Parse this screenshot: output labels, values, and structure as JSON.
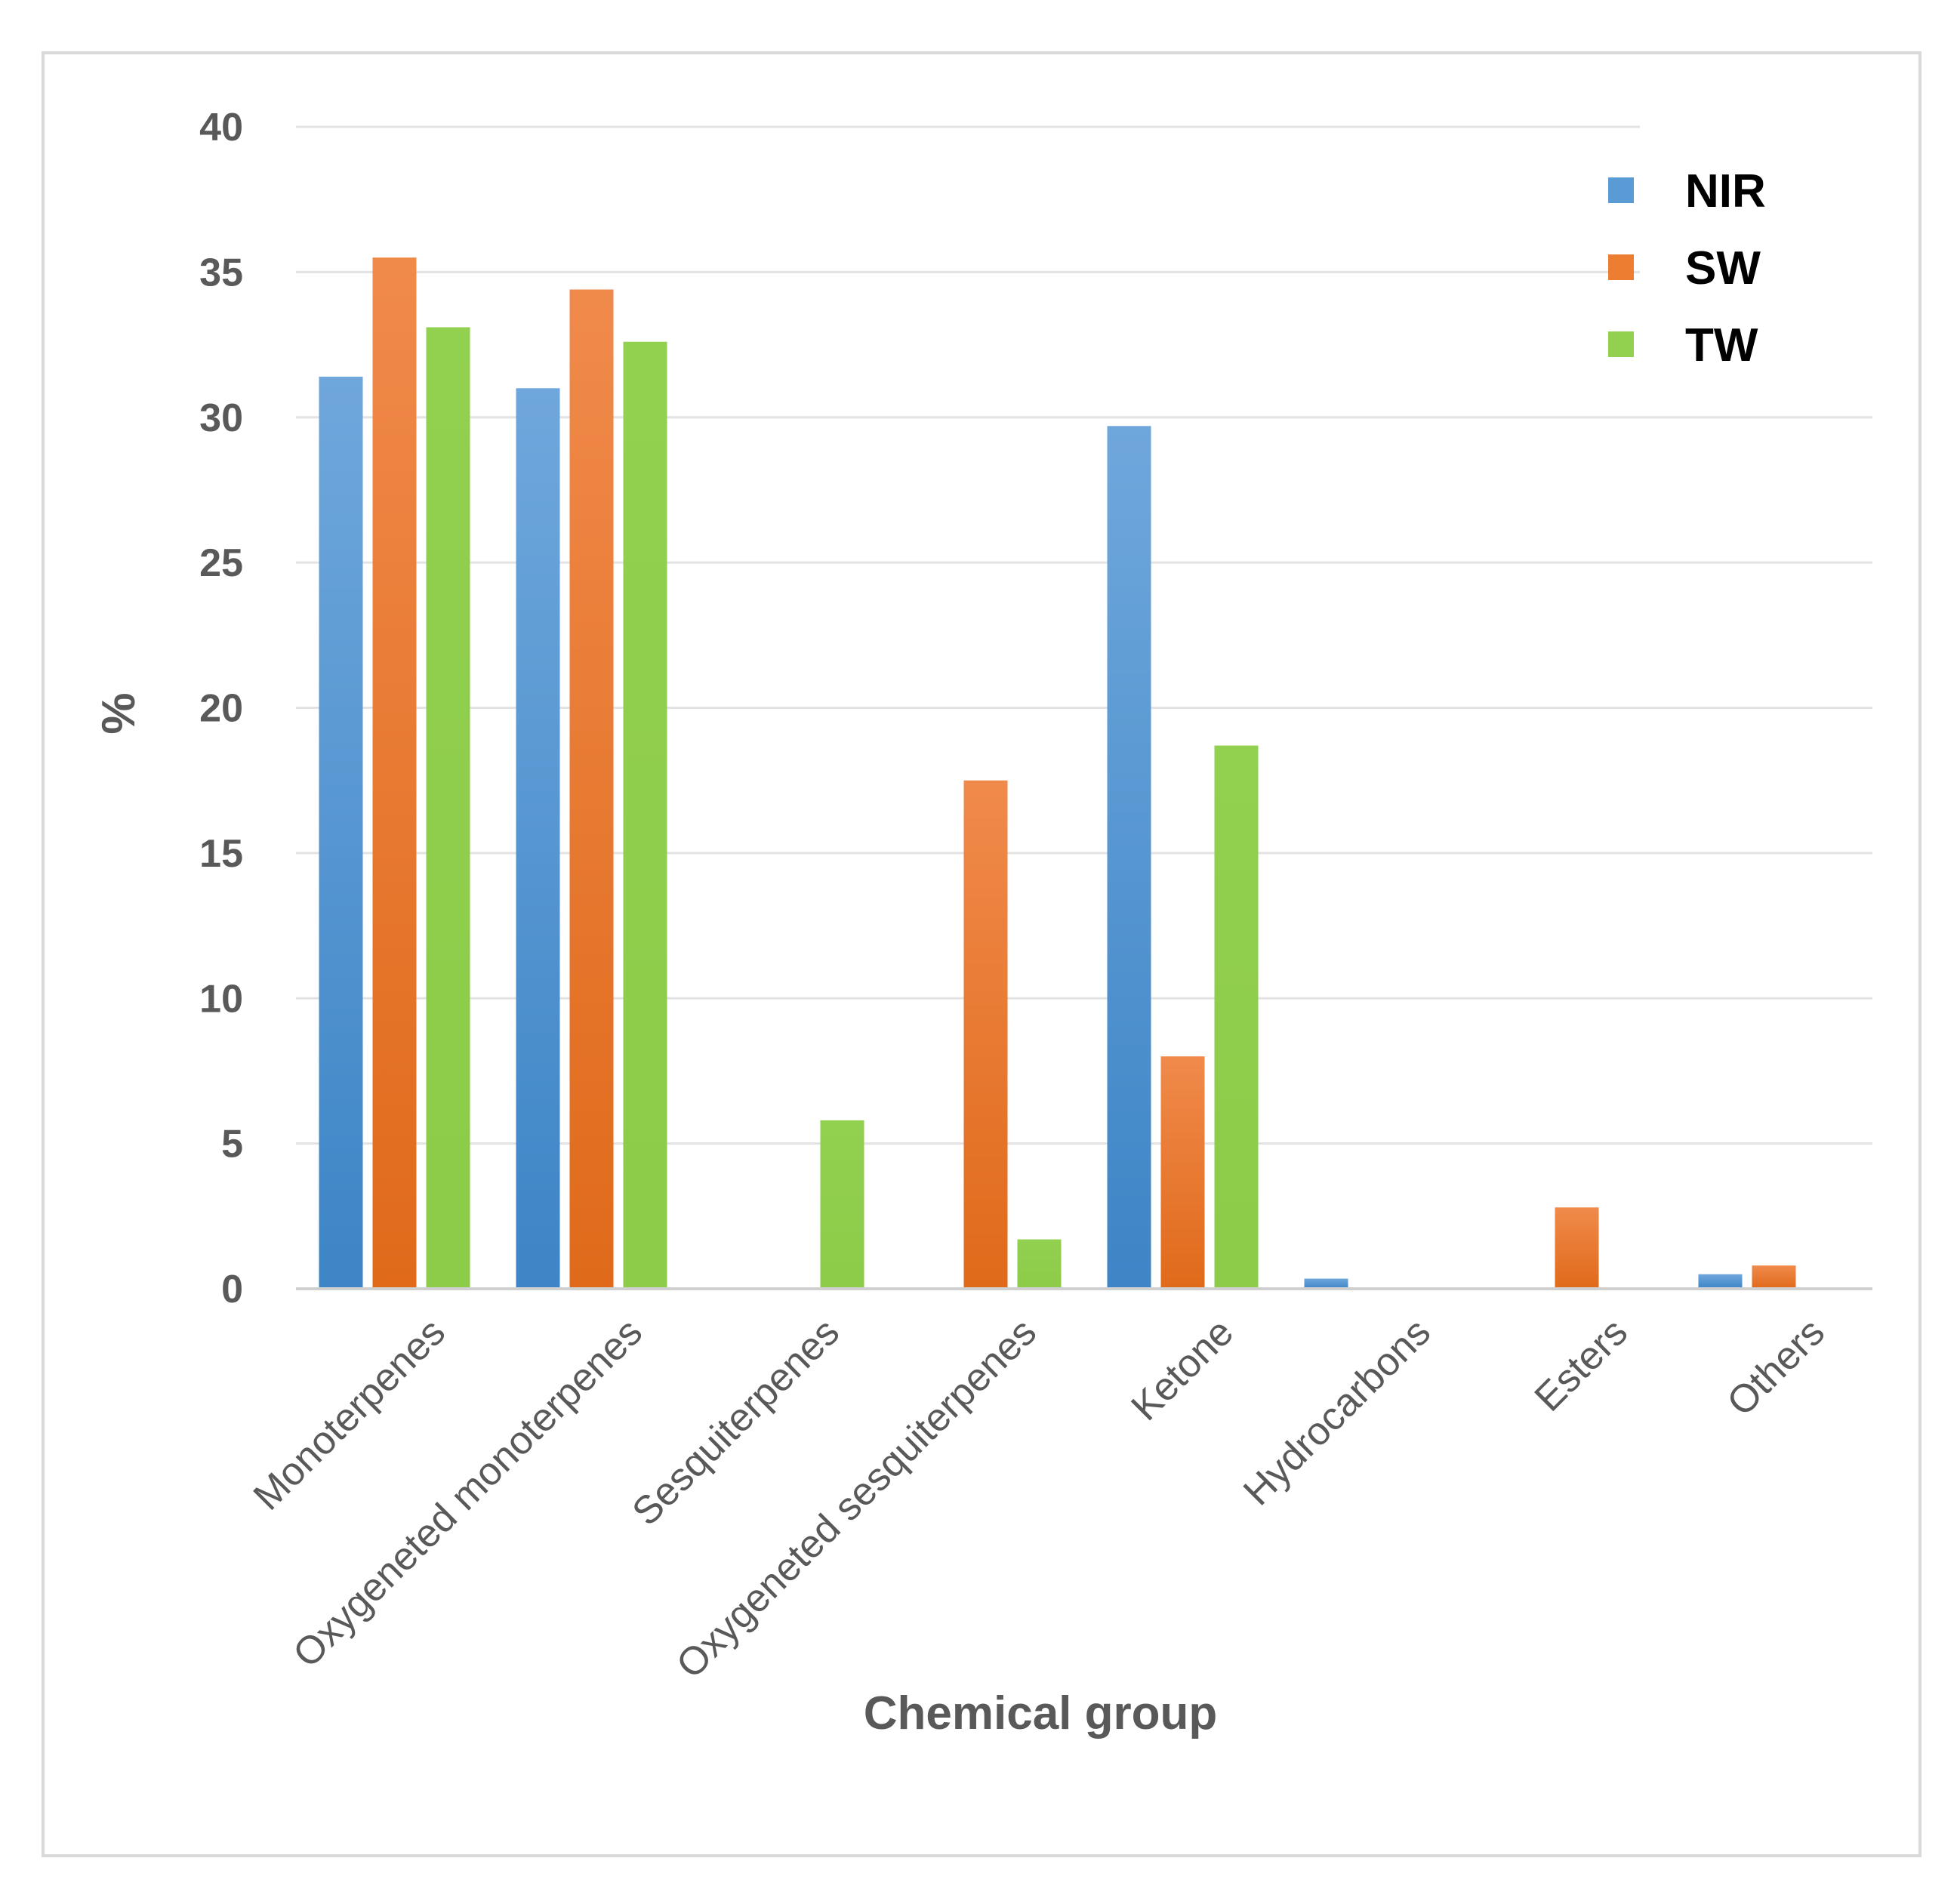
{
  "chart_data": {
    "type": "bar",
    "title": "",
    "xlabel": "Chemical group",
    "ylabel": "%",
    "ylim": [
      0,
      40
    ],
    "yticks": [
      0,
      5,
      10,
      15,
      20,
      25,
      30,
      35,
      40
    ],
    "grid": true,
    "legend_position": "top-right",
    "categories": [
      "Monoterpenes",
      "Oxygeneted monoterpenes",
      "Sesquiterpenes",
      "Oxygeneted sesquiterpenes",
      "Ketone",
      "Hydrocarbons",
      "Esters",
      "Others"
    ],
    "series": [
      {
        "name": "NIR",
        "color": "#5b9bd5",
        "values": [
          31.4,
          31.0,
          0,
          0,
          29.7,
          0.35,
          0,
          0.5
        ]
      },
      {
        "name": "SW",
        "color": "#ed7d31",
        "values": [
          35.5,
          34.4,
          0,
          17.5,
          8.0,
          0,
          2.8,
          0.8
        ]
      },
      {
        "name": "TW",
        "color": "#92d050",
        "values": [
          33.1,
          32.6,
          5.8,
          1.7,
          18.7,
          0,
          0,
          0
        ]
      }
    ]
  }
}
